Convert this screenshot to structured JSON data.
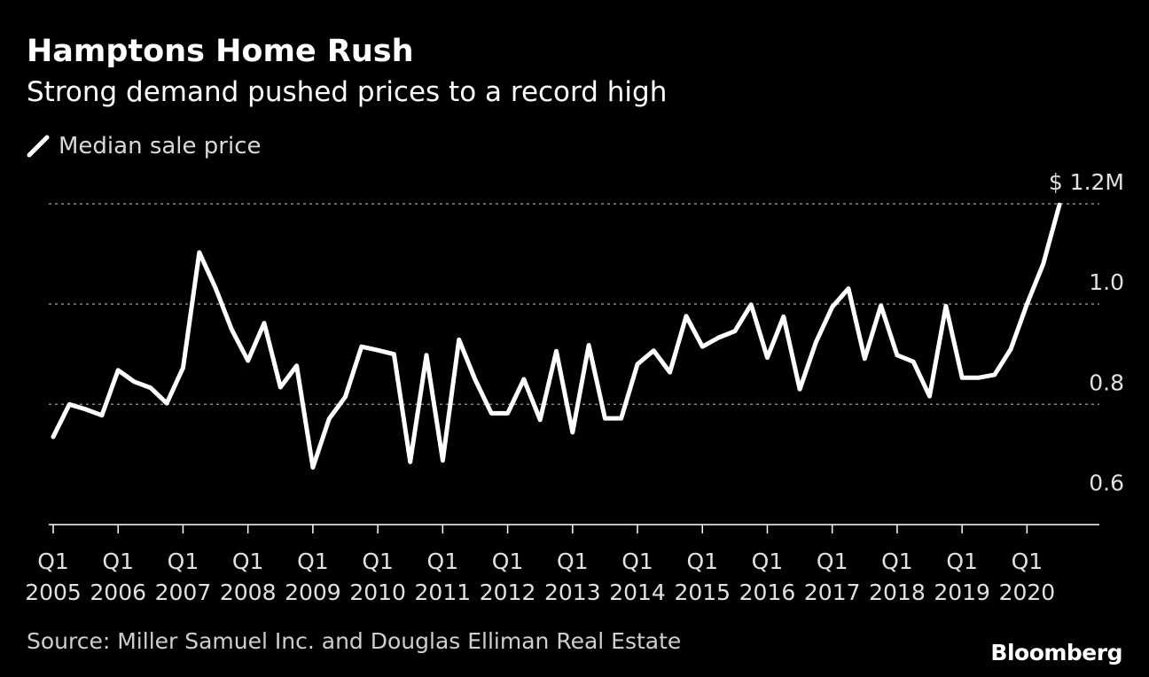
{
  "header": {
    "title": "Hamptons Home Rush",
    "subtitle": "Strong demand pushed prices to a record high"
  },
  "legend": {
    "label": "Median sale price"
  },
  "footer": {
    "source": "Source: Miller Samuel Inc. and Douglas Elliman Real Estate",
    "brand": "Bloomberg"
  },
  "colors": {
    "background": "#000000",
    "line": "#ffffff",
    "grid": "#888888"
  },
  "chart_data": {
    "type": "line",
    "title": "Hamptons Home Rush",
    "subtitle": "Strong demand pushed prices to a record high",
    "xlabel": "",
    "ylabel": "",
    "ylim": [
      0.56,
      1.2
    ],
    "y_ticks": [
      0.6,
      0.8,
      1.0,
      1.2
    ],
    "y_tick_labels": [
      "0.6",
      "0.8",
      "1.0",
      "$ 1.2M"
    ],
    "grid": true,
    "legend_position": "top-left",
    "x_tick_labels": [
      [
        "Q1",
        "2005"
      ],
      [
        "Q1",
        "2006"
      ],
      [
        "Q1",
        "2007"
      ],
      [
        "Q1",
        "2008"
      ],
      [
        "Q1",
        "2009"
      ],
      [
        "Q1",
        "2010"
      ],
      [
        "Q1",
        "2011"
      ],
      [
        "Q1",
        "2012"
      ],
      [
        "Q1",
        "2013"
      ],
      [
        "Q1",
        "2014"
      ],
      [
        "Q1",
        "2015"
      ],
      [
        "Q1",
        "2016"
      ],
      [
        "Q1",
        "2017"
      ],
      [
        "Q1",
        "2018"
      ],
      [
        "Q1",
        "2019"
      ],
      [
        "Q1",
        "2020"
      ]
    ],
    "start": "2005 Q1",
    "series": [
      {
        "name": "Median sale price",
        "values": [
          0.735,
          0.8,
          0.79,
          0.778,
          0.868,
          0.845,
          0.833,
          0.802,
          0.873,
          1.103,
          1.032,
          0.949,
          0.887,
          0.962,
          0.834,
          0.877,
          0.674,
          0.771,
          0.815,
          0.915,
          0.908,
          0.9,
          0.685,
          0.898,
          0.688,
          0.929,
          0.849,
          0.782,
          0.782,
          0.85,
          0.769,
          0.906,
          0.744,
          0.918,
          0.772,
          0.772,
          0.88,
          0.907,
          0.864,
          0.976,
          0.915,
          0.933,
          0.946,
          0.999,
          0.893,
          0.975,
          0.83,
          0.924,
          0.994,
          1.031,
          0.891,
          0.997,
          0.898,
          0.885,
          0.816,
          0.996,
          0.853,
          0.853,
          0.859,
          0.91,
          1.0,
          1.08,
          1.198
        ]
      }
    ]
  }
}
